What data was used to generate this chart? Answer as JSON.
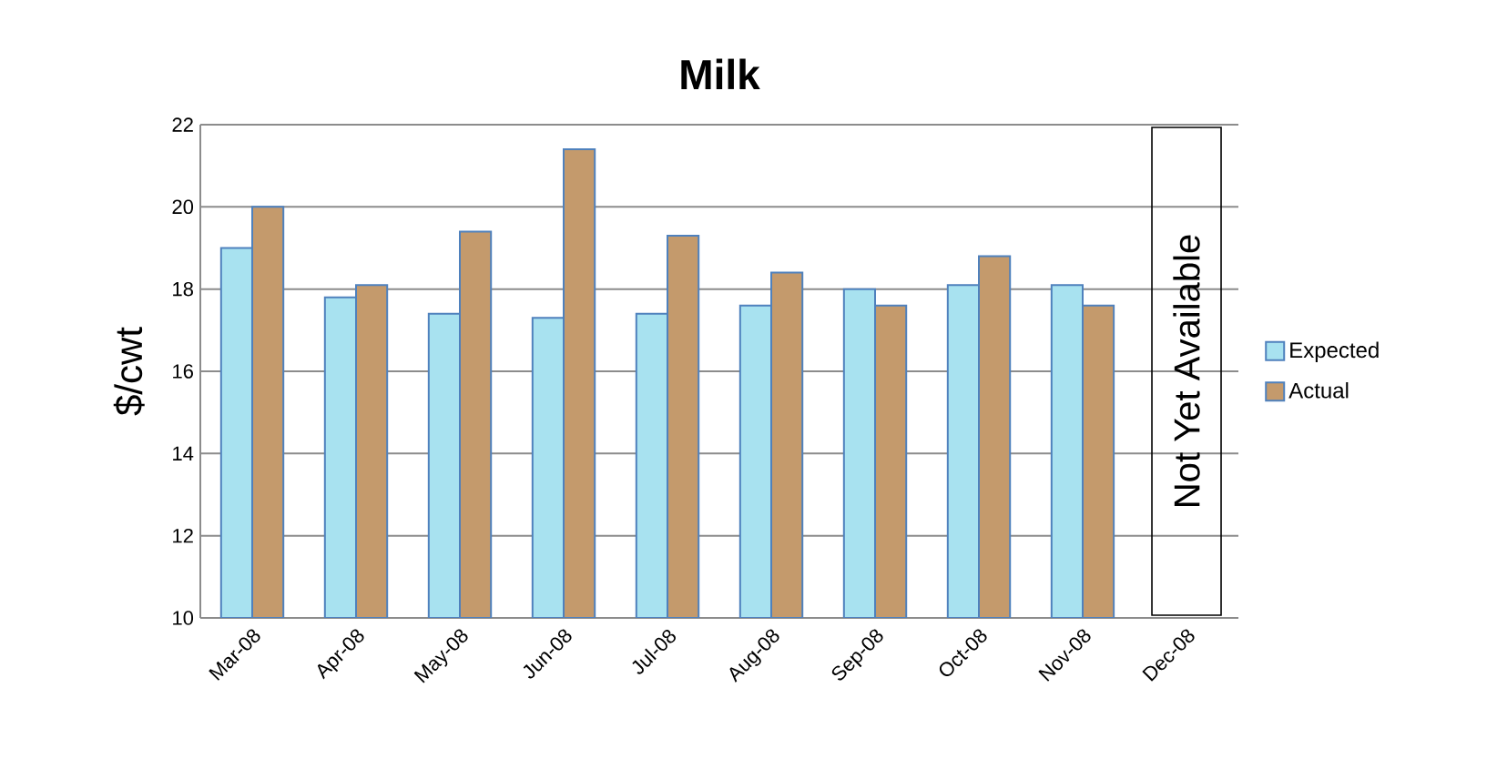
{
  "chart_data": {
    "type": "bar",
    "title": "Milk",
    "ylabel": "$/cwt",
    "categories": [
      "Mar-08",
      "Apr-08",
      "May-08",
      "Jun-08",
      "Jul-08",
      "Aug-08",
      "Sep-08",
      "Oct-08",
      "Nov-08",
      "Dec-08"
    ],
    "series": [
      {
        "name": "Expected",
        "color": "#a8e2f0",
        "values": [
          19.0,
          17.8,
          17.4,
          17.3,
          17.4,
          17.6,
          18.0,
          18.1,
          18.1,
          null
        ]
      },
      {
        "name": "Actual",
        "color": "#c49a6c",
        "values": [
          20.0,
          18.1,
          19.4,
          21.4,
          19.3,
          18.4,
          17.6,
          18.8,
          17.6,
          null
        ]
      }
    ],
    "ylim": [
      10,
      22
    ],
    "yticks": [
      10,
      12,
      14,
      16,
      18,
      20,
      22
    ],
    "grid": "y",
    "legend": "right",
    "annotations": [
      "Not Yet Available"
    ]
  }
}
